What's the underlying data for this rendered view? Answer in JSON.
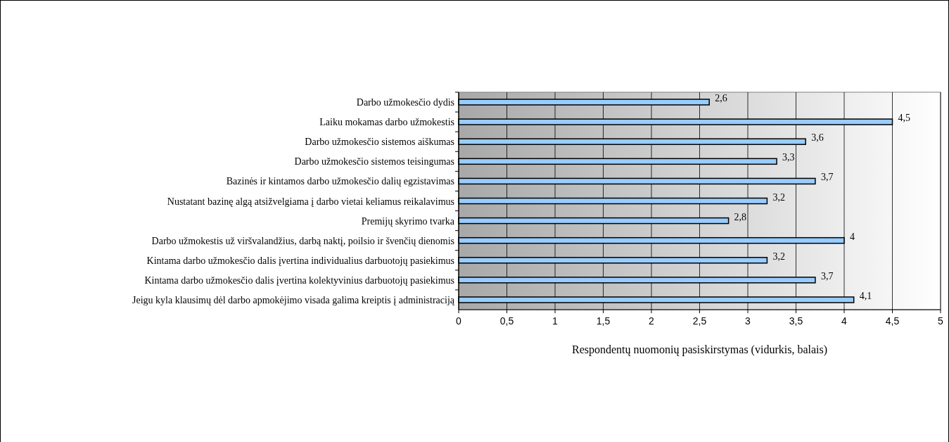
{
  "chart_data": {
    "type": "bar",
    "orientation": "horizontal",
    "xlabel": "Respondentų nuomonių pasiskirstymas (vidurkis, balais)",
    "categories": [
      "Darbo užmokesčio dydis",
      "Laiku mokamas darbo užmokestis",
      "Darbo užmokesčio sistemos aiškumas",
      "Darbo užmokesčio sistemos teisingumas",
      "Bazinės ir kintamos darbo užmokesčio dalių egzistavimas",
      "Nustatant bazinę algą atsižvelgiama į darbo vietai keliamus reikalavimus",
      "Premijų skyrimo tvarka",
      "Darbo užmokestis už viršvalandžius, darbą naktį, poilsio ir švenčių dienomis",
      "Kintama darbo užmokesčio dalis įvertina individualius darbuotojų pasiekimus",
      "Kintama darbo užmokesčio dalis įvertina kolektyvinius darbuotojų pasiekimus",
      "Jeigu kyla klausimų dėl darbo apmokėjimo visada galima kreiptis į administraciją"
    ],
    "values": [
      2.6,
      4.5,
      3.6,
      3.3,
      3.7,
      3.2,
      2.8,
      4,
      3.2,
      3.7,
      4.1
    ],
    "value_labels": [
      "2,6",
      "4,5",
      "3,6",
      "3,3",
      "3,7",
      "3,2",
      "2,8",
      "4",
      "3,2",
      "3,7",
      "4,1"
    ],
    "color": "#99ccff",
    "xlim": [
      0,
      5
    ],
    "xticks": [
      0,
      {
        "value": 0.5,
        "label": "0,5"
      },
      1,
      {
        "value": 1.5,
        "label": "1,5"
      },
      2,
      {
        "value": 2.5,
        "label": "2,5"
      },
      3,
      {
        "value": 3.5,
        "label": "3,5"
      },
      4,
      {
        "value": 4.5,
        "label": "4,5"
      },
      5
    ],
    "grid": "x"
  }
}
